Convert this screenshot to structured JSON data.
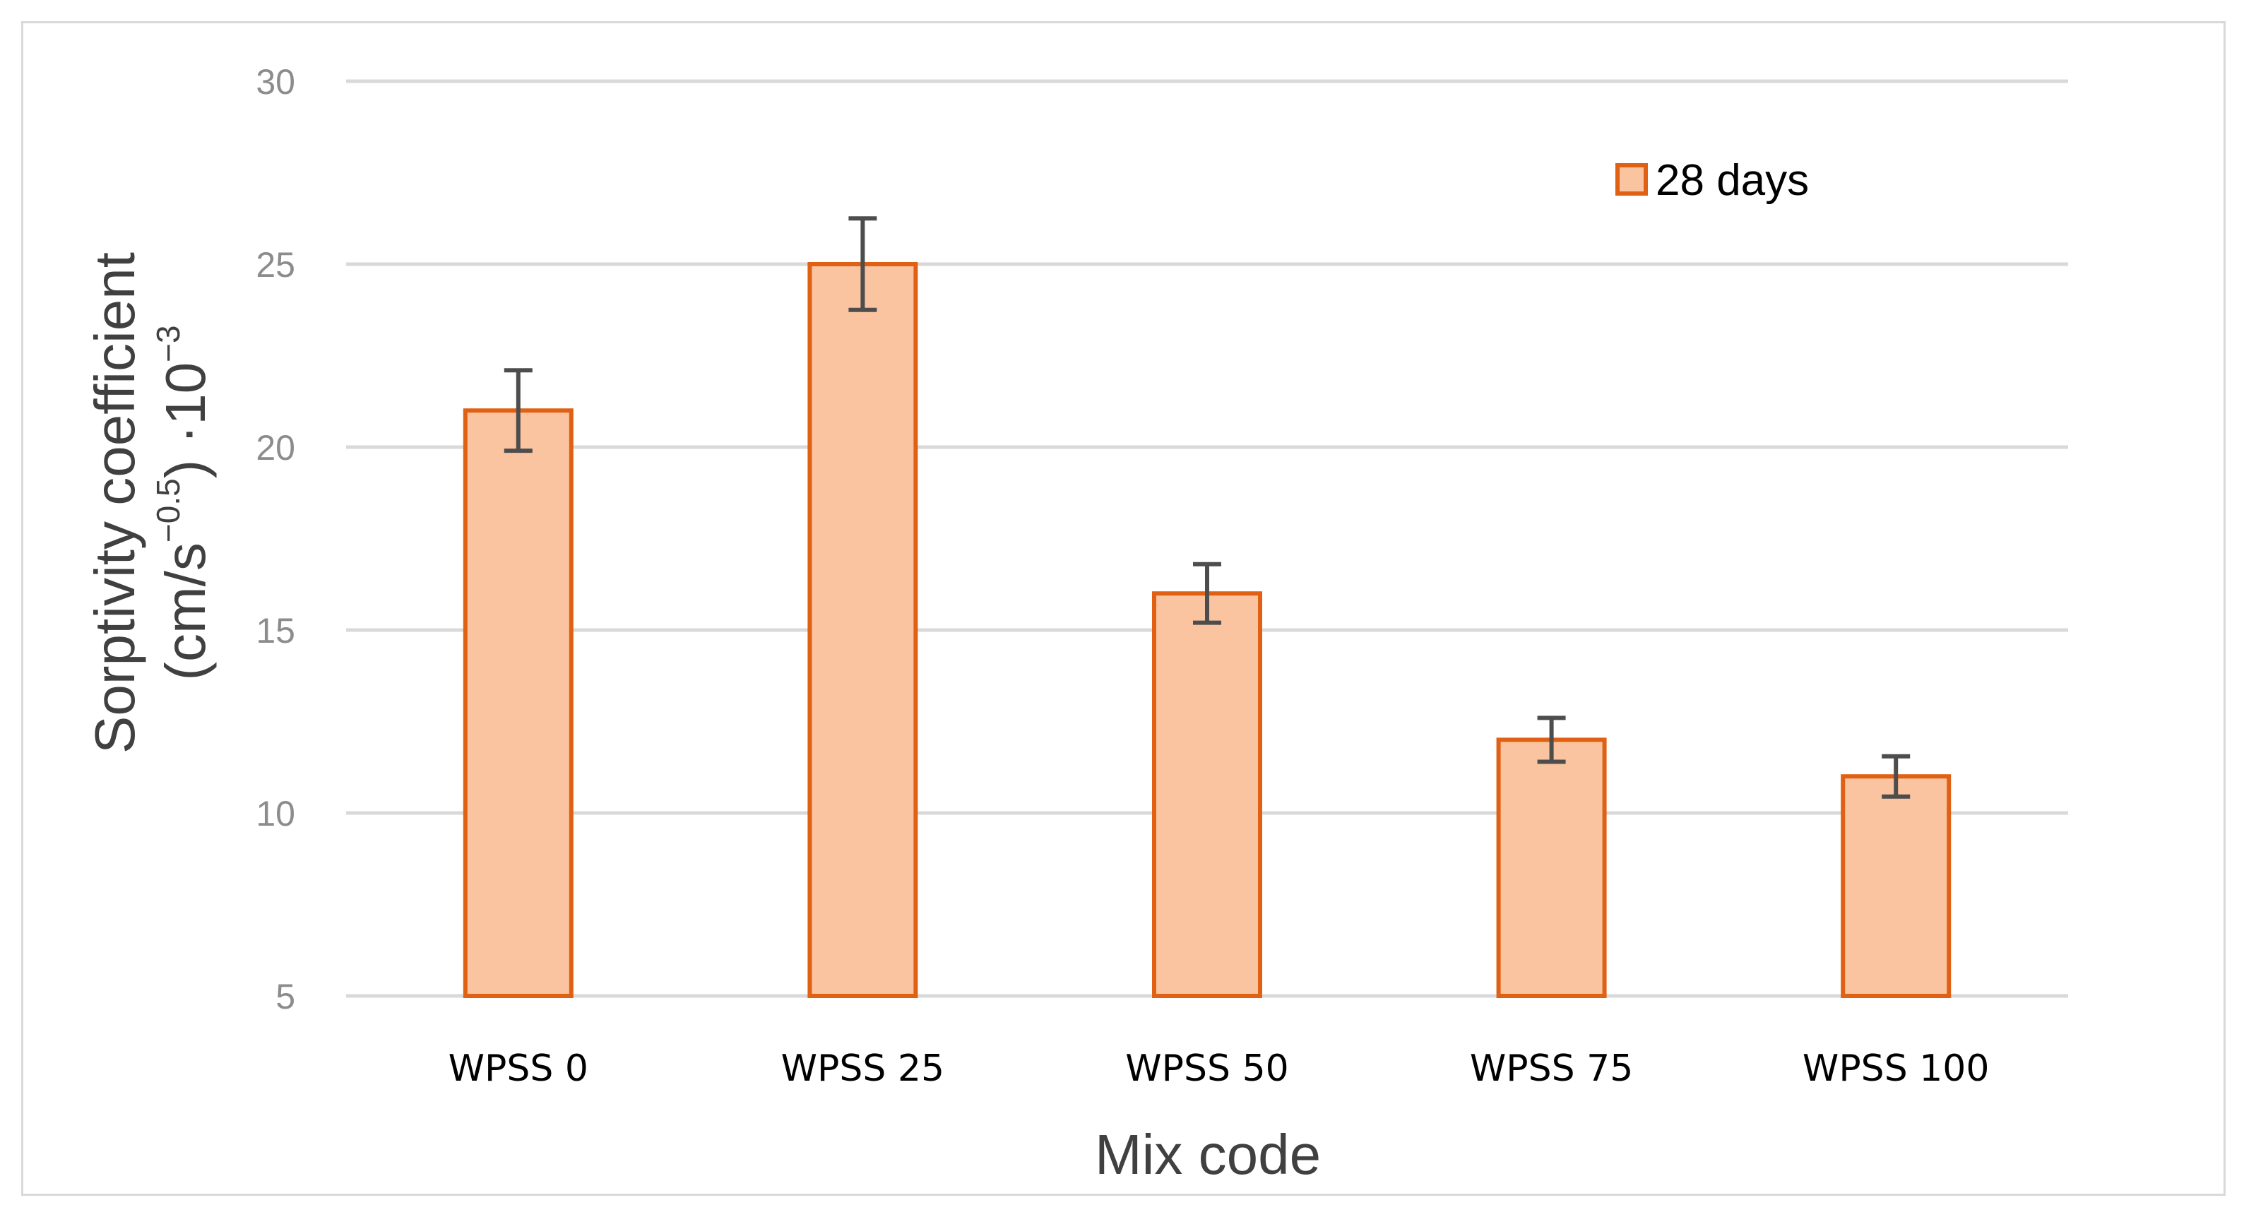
{
  "chart_data": {
    "type": "bar",
    "title": "",
    "categories": [
      "WPSS 0",
      "WPSS 25",
      "WPSS 50",
      "WPSS 75",
      "WPSS 100"
    ],
    "series": [
      {
        "name": "28 days",
        "values": [
          21,
          25,
          16,
          12,
          11
        ],
        "errors": [
          1.1,
          1.25,
          0.8,
          0.6,
          0.55
        ]
      }
    ],
    "xlabel": "Mix code",
    "ylabel": {
      "line1": "Sorptivity coefficient",
      "line2_base": "(cm/s",
      "line2_exp": "−0.5",
      "line2_mid": ") ·10",
      "line2_exp2": "−3"
    },
    "ylim": [
      5,
      30
    ],
    "yticks": [
      "5",
      "10",
      "15",
      "20",
      "25",
      "30"
    ],
    "grid": true,
    "legend_position": "top-right",
    "colors": {
      "bar_fill": "#fbc4a0",
      "bar_stroke": "#e06014",
      "error_bar": "#4d4d4d",
      "grid": "#d9d9d9"
    }
  }
}
